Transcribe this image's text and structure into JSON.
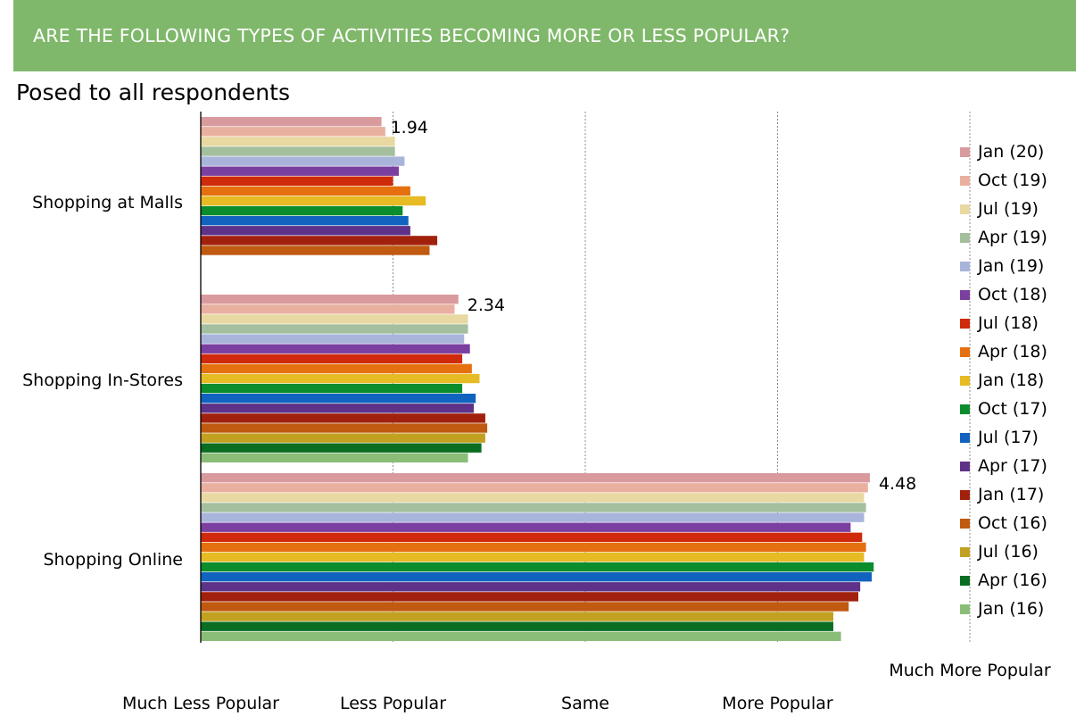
{
  "header": {
    "title": "ARE THE FOLLOWING TYPES OF ACTIVITIES BECOMING MORE OR LESS POPULAR?",
    "subtitle": "Posed to all respondents"
  },
  "colors": {
    "banner": "#7fb86a",
    "gridline": "#8c8c8c",
    "axis": "#000000"
  },
  "chart_data": {
    "type": "bar",
    "orientation": "horizontal",
    "title": "ARE THE FOLLOWING TYPES OF ACTIVITIES BECOMING MORE OR LESS POPULAR?",
    "subtitle": "Posed to all respondents",
    "categories": [
      "Shopping at Malls",
      "Shopping In-Stores",
      "Shopping Online"
    ],
    "xlim": [
      1,
      5
    ],
    "x_ticks": [
      1,
      2,
      3,
      4,
      5
    ],
    "x_tick_labels": [
      "Much Less Popular",
      "Less Popular",
      "Same",
      "More Popular",
      "Much More Popular"
    ],
    "grid": true,
    "legend_position": "right",
    "annotations": [
      {
        "category": "Shopping at Malls",
        "series": "Jan (20)",
        "text": "1.94"
      },
      {
        "category": "Shopping In-Stores",
        "series": "Jan (20)",
        "text": "2.34"
      },
      {
        "category": "Shopping Online",
        "series": "Jan (20)",
        "text": "4.48"
      }
    ],
    "series": [
      {
        "name": "Jan (20)",
        "color": "#d99a9e",
        "values": [
          1.94,
          2.34,
          4.48
        ]
      },
      {
        "name": "Oct (19)",
        "color": "#e9b0a0",
        "values": [
          1.96,
          2.32,
          4.47
        ]
      },
      {
        "name": "Jul (19)",
        "color": "#e8d8a2",
        "values": [
          2.01,
          2.39,
          4.45
        ]
      },
      {
        "name": "Apr (19)",
        "color": "#a4bf9e",
        "values": [
          2.01,
          2.39,
          4.46
        ]
      },
      {
        "name": "Jan (19)",
        "color": "#a9b4db",
        "values": [
          2.06,
          2.37,
          4.45
        ]
      },
      {
        "name": "Oct (18)",
        "color": "#7b3fa0",
        "values": [
          2.03,
          2.4,
          4.38
        ]
      },
      {
        "name": "Jul (18)",
        "color": "#cf2a0b",
        "values": [
          2.0,
          2.36,
          4.44
        ]
      },
      {
        "name": "Apr (18)",
        "color": "#e5700f",
        "values": [
          2.09,
          2.41,
          4.46
        ]
      },
      {
        "name": "Jan (18)",
        "color": "#e6bb24",
        "values": [
          2.17,
          2.45,
          4.45
        ]
      },
      {
        "name": "Oct (17)",
        "color": "#0b8c2d",
        "values": [
          2.05,
          2.36,
          4.5
        ]
      },
      {
        "name": "Jul (17)",
        "color": "#1163bf",
        "values": [
          2.08,
          2.43,
          4.49
        ]
      },
      {
        "name": "Apr (17)",
        "color": "#5e3289",
        "values": [
          2.09,
          2.42,
          4.43
        ]
      },
      {
        "name": "Jan (17)",
        "color": "#a2210d",
        "values": [
          2.23,
          2.48,
          4.42
        ]
      },
      {
        "name": "Oct (16)",
        "color": "#bf5a10",
        "values": [
          2.19,
          2.49,
          4.37
        ]
      },
      {
        "name": "Jul (16)",
        "color": "#c2a121",
        "values": [
          null,
          2.48,
          4.29
        ]
      },
      {
        "name": "Apr (16)",
        "color": "#0a6e22",
        "values": [
          null,
          2.46,
          4.29
        ]
      },
      {
        "name": "Jan (16)",
        "color": "#8abd78",
        "values": [
          null,
          2.39,
          4.33
        ]
      }
    ]
  }
}
